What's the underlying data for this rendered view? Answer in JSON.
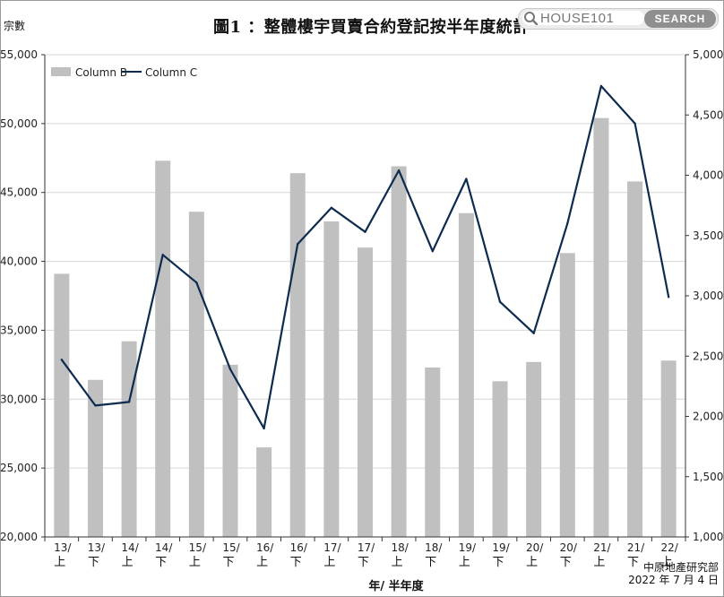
{
  "title": "圖1 ：整體樓宇買賣合約登記按半年度統計",
  "search": {
    "value": "HOUSE101",
    "button_label": "SEARCH",
    "icon": "search-icon"
  },
  "chart_data": {
    "type": "bar+line",
    "title": "圖1 ：整體樓宇買賣合約登記按半年度統計",
    "xlabel": "年/ 半年度",
    "ylabel_left": "宗數",
    "ylabel_right": "",
    "legend_position": "top-left",
    "grid": "horizontal",
    "categories": [
      [
        "13/",
        "上"
      ],
      [
        "13/",
        "下"
      ],
      [
        "14/",
        "上"
      ],
      [
        "14/",
        "下"
      ],
      [
        "15/",
        "上"
      ],
      [
        "15/",
        "下"
      ],
      [
        "16/",
        "上"
      ],
      [
        "16/",
        "下"
      ],
      [
        "17/",
        "上"
      ],
      [
        "17/",
        "下"
      ],
      [
        "18/",
        "上"
      ],
      [
        "18/",
        "下"
      ],
      [
        "19/",
        "上"
      ],
      [
        "19/",
        "下"
      ],
      [
        "20/",
        "上"
      ],
      [
        "20/",
        "下"
      ],
      [
        "21/",
        "上"
      ],
      [
        "21/",
        "下"
      ],
      [
        "22/",
        "上"
      ]
    ],
    "ylim_left": [
      20000,
      55000
    ],
    "yticks_left": [
      "20,000",
      "25,000",
      "30,000",
      "35,000",
      "40,000",
      "45,000",
      "50,000",
      "55,000"
    ],
    "ylim_right": [
      1000,
      5000
    ],
    "yticks_right": [
      "1,000",
      "1,500",
      "2,000",
      "2,500",
      "3,000",
      "3,500",
      "4,000",
      "4,500",
      "5,000"
    ],
    "series": [
      {
        "name": "Column B",
        "type": "bar",
        "axis": "left",
        "color": "#c0c0c0",
        "values": [
          39100,
          31400,
          34200,
          47300,
          43600,
          32500,
          26500,
          46400,
          42900,
          41000,
          46900,
          32300,
          43500,
          31300,
          32700,
          40600,
          50400,
          45800,
          32800
        ]
      },
      {
        "name": "Column C",
        "type": "line",
        "axis": "right",
        "color": "#0d2b4e",
        "values": [
          2470,
          2090,
          2120,
          3340,
          3110,
          2390,
          1900,
          3430,
          3730,
          3530,
          4040,
          3370,
          3970,
          2950,
          2690,
          3600,
          4740,
          4430,
          2990
        ]
      }
    ]
  },
  "source": {
    "line1": "中原地產研究部",
    "line2": "2022 年 7 月 4 日"
  }
}
